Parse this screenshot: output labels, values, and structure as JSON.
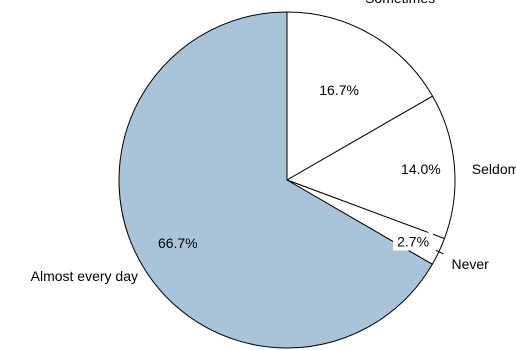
{
  "chart_data": {
    "type": "pie",
    "categories": [
      "Sometimes",
      "Seldom",
      "Never",
      "Almost every day"
    ],
    "values": [
      16.7,
      14.0,
      2.7,
      66.7
    ],
    "value_labels": [
      "16.7%",
      "14.0%",
      "2.7%",
      "66.7%"
    ],
    "colors": [
      "#ffffff",
      "#ffffff",
      "#ffffff",
      "#a9c4d9"
    ],
    "start_angle_deg": 0,
    "direction": "clockwise",
    "title": "",
    "legend": "none"
  }
}
